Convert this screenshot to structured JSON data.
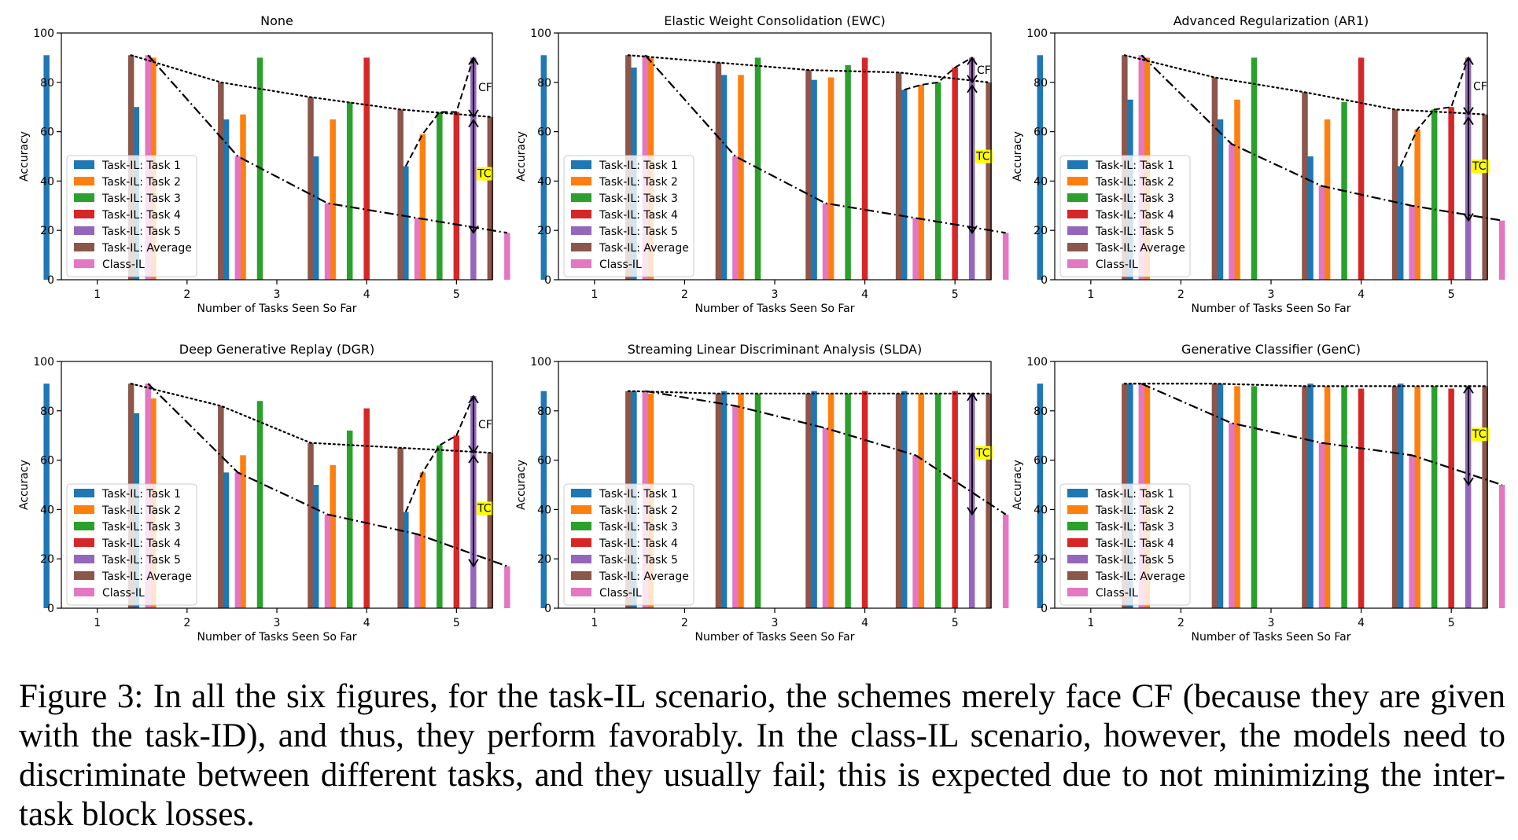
{
  "figure": {
    "legend_labels": [
      "Task-IL: Task 1",
      "Task-IL: Task 2",
      "Task-IL: Task 3",
      "Task-IL: Task 4",
      "Task-IL: Task 5",
      "Task-IL: Average",
      "Class-IL"
    ],
    "colors": {
      "task1": "#1f77b4",
      "task2": "#ff7f0e",
      "task3": "#2ca02c",
      "task4": "#d62728",
      "task5": "#9467bd",
      "average": "#8c564b",
      "class_il": "#e377c2",
      "tc_highlight": "#ffff00"
    },
    "legend_placement": "center-left",
    "annotation_labels": {
      "cf": "CF",
      "tc": "TC"
    }
  },
  "chart_data": [
    {
      "type": "bar",
      "title": "None",
      "xlabel": "Number of Tasks Seen So Far",
      "ylabel": "Accuracy",
      "categories": [
        "1",
        "2",
        "3",
        "4",
        "5"
      ],
      "ylim": [
        0,
        100
      ],
      "yticks": [
        "0",
        "20",
        "40",
        "60",
        "80",
        "100"
      ],
      "series": [
        {
          "name": "Task-IL: Task 1",
          "values": [
            91,
            70,
            65,
            50,
            46
          ]
        },
        {
          "name": "Task-IL: Task 2",
          "values": [
            null,
            90,
            67,
            65,
            59
          ]
        },
        {
          "name": "Task-IL: Task 3",
          "values": [
            null,
            null,
            90,
            72,
            68
          ]
        },
        {
          "name": "Task-IL: Task 4",
          "values": [
            null,
            null,
            null,
            90,
            68
          ]
        },
        {
          "name": "Task-IL: Task 5",
          "values": [
            null,
            null,
            null,
            null,
            90
          ]
        },
        {
          "name": "Task-IL: Average",
          "values": [
            91,
            80,
            74,
            69,
            66
          ]
        },
        {
          "name": "Class-IL",
          "values": [
            91,
            50,
            31,
            25,
            19
          ]
        }
      ],
      "annotations": [
        "CF",
        "TC"
      ]
    },
    {
      "type": "bar",
      "title": "Elastic Weight Consolidation (EWC)",
      "xlabel": "Number of Tasks Seen So Far",
      "ylabel": "Accuracy",
      "categories": [
        "1",
        "2",
        "3",
        "4",
        "5"
      ],
      "ylim": [
        0,
        100
      ],
      "yticks": [
        "0",
        "20",
        "40",
        "60",
        "80",
        "100"
      ],
      "series": [
        {
          "name": "Task-IL: Task 1",
          "values": [
            91,
            86,
            83,
            81,
            77
          ]
        },
        {
          "name": "Task-IL: Task 2",
          "values": [
            null,
            90,
            83,
            82,
            79
          ]
        },
        {
          "name": "Task-IL: Task 3",
          "values": [
            null,
            null,
            90,
            87,
            80
          ]
        },
        {
          "name": "Task-IL: Task 4",
          "values": [
            null,
            null,
            null,
            90,
            86
          ]
        },
        {
          "name": "Task-IL: Task 5",
          "values": [
            null,
            null,
            null,
            null,
            90
          ]
        },
        {
          "name": "Task-IL: Average",
          "values": [
            91,
            88,
            85,
            84,
            80
          ]
        },
        {
          "name": "Class-IL",
          "values": [
            91,
            50,
            31,
            25,
            19
          ]
        }
      ],
      "annotations": [
        "CF",
        "TC"
      ]
    },
    {
      "type": "bar",
      "title": "Advanced Regularization (AR1)",
      "xlabel": "Number of Tasks Seen So Far",
      "ylabel": "Accuracy",
      "categories": [
        "1",
        "2",
        "3",
        "4",
        "5"
      ],
      "ylim": [
        0,
        100
      ],
      "yticks": [
        "0",
        "20",
        "40",
        "60",
        "80",
        "100"
      ],
      "series": [
        {
          "name": "Task-IL: Task 1",
          "values": [
            91,
            73,
            65,
            50,
            46
          ]
        },
        {
          "name": "Task-IL: Task 2",
          "values": [
            null,
            90,
            73,
            65,
            61
          ]
        },
        {
          "name": "Task-IL: Task 3",
          "values": [
            null,
            null,
            90,
            72,
            69
          ]
        },
        {
          "name": "Task-IL: Task 4",
          "values": [
            null,
            null,
            null,
            90,
            70
          ]
        },
        {
          "name": "Task-IL: Task 5",
          "values": [
            null,
            null,
            null,
            null,
            90
          ]
        },
        {
          "name": "Task-IL: Average",
          "values": [
            91,
            82,
            76,
            69,
            67
          ]
        },
        {
          "name": "Class-IL",
          "values": [
            91,
            55,
            38,
            30,
            24
          ]
        }
      ],
      "annotations": [
        "CF",
        "TC"
      ]
    },
    {
      "type": "bar",
      "title": "Deep Generative Replay (DGR)",
      "xlabel": "Number of Tasks Seen So Far",
      "ylabel": "Accuracy",
      "categories": [
        "1",
        "2",
        "3",
        "4",
        "5"
      ],
      "ylim": [
        0,
        100
      ],
      "yticks": [
        "0",
        "20",
        "40",
        "60",
        "80",
        "100"
      ],
      "series": [
        {
          "name": "Task-IL: Task 1",
          "values": [
            91,
            79,
            55,
            50,
            39
          ]
        },
        {
          "name": "Task-IL: Task 2",
          "values": [
            null,
            85,
            62,
            58,
            55
          ]
        },
        {
          "name": "Task-IL: Task 3",
          "values": [
            null,
            null,
            84,
            72,
            66
          ]
        },
        {
          "name": "Task-IL: Task 4",
          "values": [
            null,
            null,
            null,
            81,
            70
          ]
        },
        {
          "name": "Task-IL: Task 5",
          "values": [
            null,
            null,
            null,
            null,
            86
          ]
        },
        {
          "name": "Task-IL: Average",
          "values": [
            91,
            82,
            67,
            65,
            63
          ]
        },
        {
          "name": "Class-IL",
          "values": [
            91,
            55,
            38,
            30,
            17
          ]
        }
      ],
      "annotations": [
        "CF",
        "TC"
      ]
    },
    {
      "type": "bar",
      "title": "Streaming Linear Discriminant Analysis (SLDA)",
      "xlabel": "Number of Tasks Seen So Far",
      "ylabel": "Accuracy",
      "categories": [
        "1",
        "2",
        "3",
        "4",
        "5"
      ],
      "ylim": [
        0,
        100
      ],
      "yticks": [
        "0",
        "20",
        "40",
        "60",
        "80",
        "100"
      ],
      "series": [
        {
          "name": "Task-IL: Task 1",
          "values": [
            88,
            88,
            88,
            88,
            88
          ]
        },
        {
          "name": "Task-IL: Task 2",
          "values": [
            null,
            87,
            87,
            87,
            87
          ]
        },
        {
          "name": "Task-IL: Task 3",
          "values": [
            null,
            null,
            87,
            87,
            87
          ]
        },
        {
          "name": "Task-IL: Task 4",
          "values": [
            null,
            null,
            null,
            88,
            88
          ]
        },
        {
          "name": "Task-IL: Task 5",
          "values": [
            null,
            null,
            null,
            null,
            87
          ]
        },
        {
          "name": "Task-IL: Average",
          "values": [
            88,
            87,
            87,
            87,
            87
          ]
        },
        {
          "name": "Class-IL",
          "values": [
            88,
            82,
            73,
            62,
            38
          ]
        }
      ],
      "annotations": [
        "TC"
      ]
    },
    {
      "type": "bar",
      "title": "Generative Classifier (GenC)",
      "xlabel": "Number of Tasks Seen So Far",
      "ylabel": "Accuracy",
      "categories": [
        "1",
        "2",
        "3",
        "4",
        "5"
      ],
      "ylim": [
        0,
        100
      ],
      "yticks": [
        "0",
        "20",
        "40",
        "60",
        "80",
        "100"
      ],
      "series": [
        {
          "name": "Task-IL: Task 1",
          "values": [
            91,
            91,
            91,
            91,
            91
          ]
        },
        {
          "name": "Task-IL: Task 2",
          "values": [
            null,
            90,
            90,
            90,
            90
          ]
        },
        {
          "name": "Task-IL: Task 3",
          "values": [
            null,
            null,
            90,
            90,
            90
          ]
        },
        {
          "name": "Task-IL: Task 4",
          "values": [
            null,
            null,
            null,
            89,
            89
          ]
        },
        {
          "name": "Task-IL: Task 5",
          "values": [
            null,
            null,
            null,
            null,
            90
          ]
        },
        {
          "name": "Task-IL: Average",
          "values": [
            91,
            91,
            90,
            90,
            90
          ]
        },
        {
          "name": "Class-IL",
          "values": [
            91,
            75,
            67,
            62,
            50
          ]
        }
      ],
      "annotations": [
        "TC"
      ]
    }
  ],
  "caption": {
    "text": "Figure 3: In all the six figures, for the task-IL scenario, the schemes merely face CF (because they are given with the task-ID), and thus, they perform favorably. In the class-IL scenario, however, the models need to discriminate between different tasks, and they usually fail; this is expected due to not minimizing the inter-task block losses."
  }
}
